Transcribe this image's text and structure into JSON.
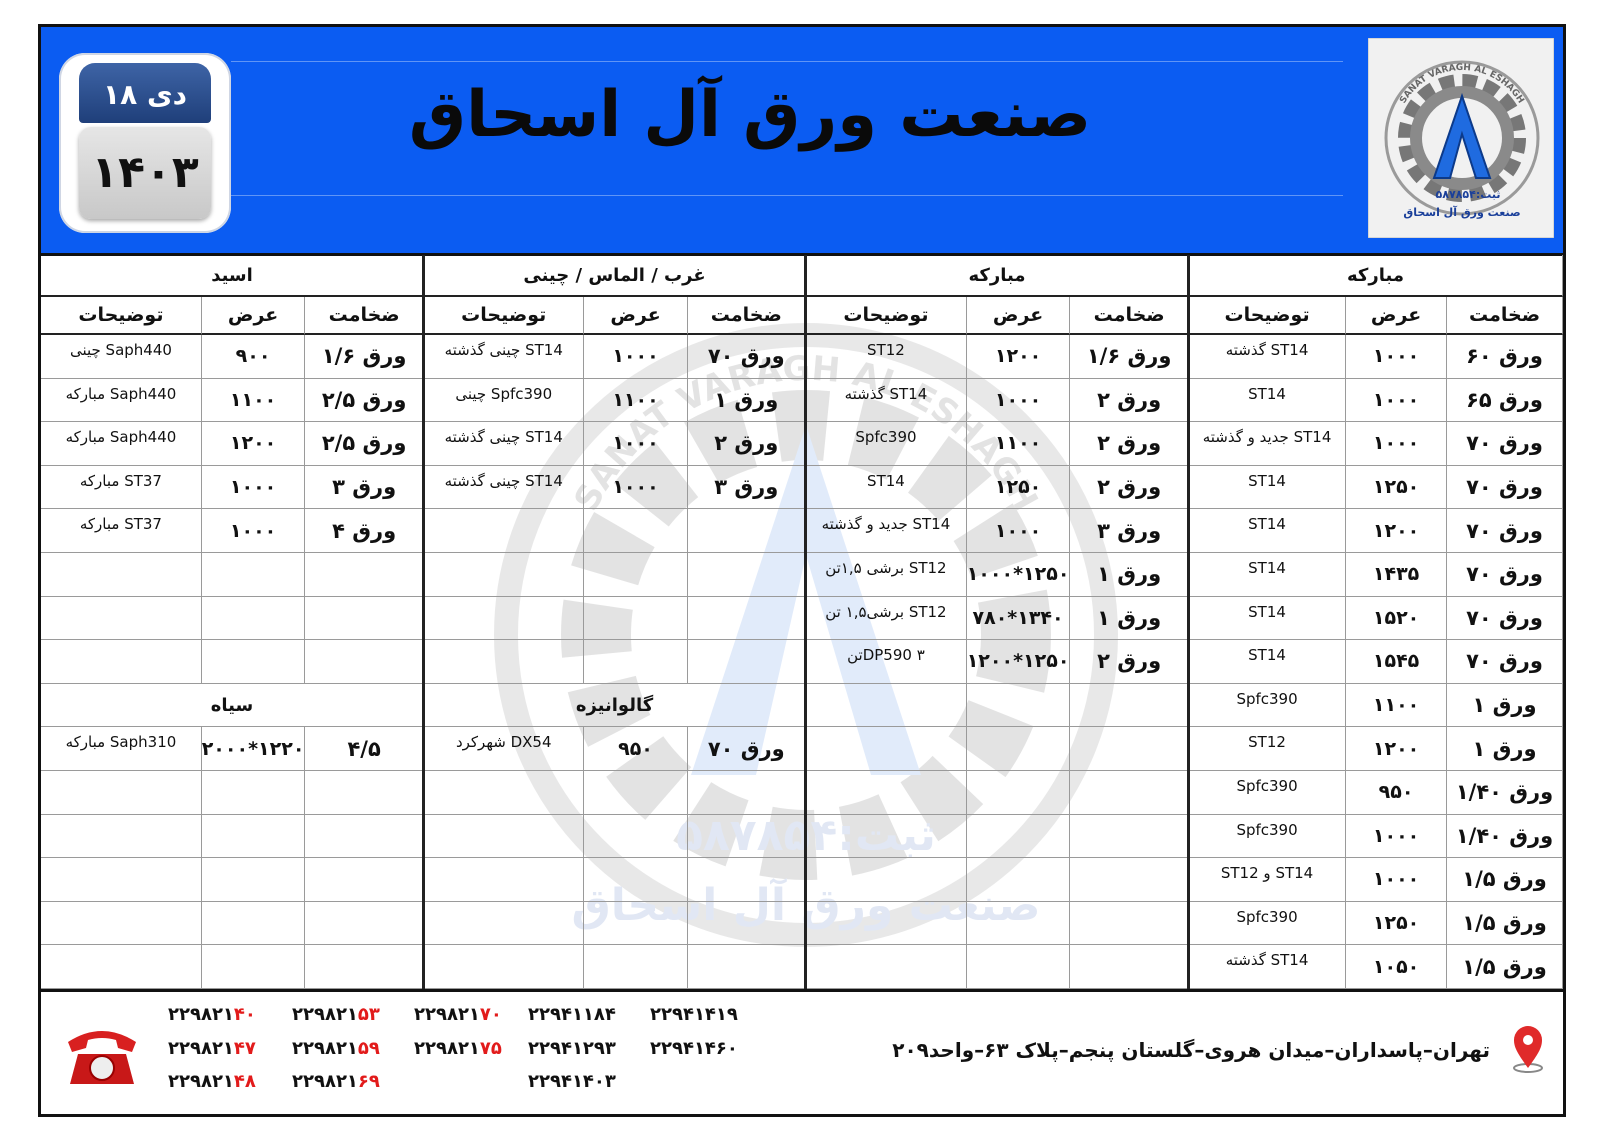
{
  "header": {
    "title": "صنعت ورق آل اسحاق",
    "date_day": "دی ۱۸",
    "date_year": "۱۴۰۳"
  },
  "logo": {
    "arc_text": "SANAT VARAGH AL ESHAGH",
    "registration": "ثبت:۵۸۷۸۵۴",
    "name": "صنعت ورق آل اسحاق"
  },
  "sections": [
    {
      "title": "مبارکه",
      "columns": [
        "ضخامت",
        "عرض",
        "توضیحات"
      ],
      "rows": [
        [
          "ورق ۶۰",
          "۱۰۰۰",
          "ST14 گذشته"
        ],
        [
          "ورق ۶۵",
          "۱۰۰۰",
          "ST14"
        ],
        [
          "ورق ۷۰",
          "۱۰۰۰",
          "ST14 جدید و گذشته"
        ],
        [
          "ورق ۷۰",
          "۱۲۵۰",
          "ST14"
        ],
        [
          "ورق ۷۰",
          "۱۲۰۰",
          "ST14"
        ],
        [
          "ورق ۷۰",
          "۱۴۳۵",
          "ST14"
        ],
        [
          "ورق ۷۰",
          "۱۵۲۰",
          "ST14"
        ],
        [
          "ورق ۷۰",
          "۱۵۴۵",
          "ST14"
        ],
        [
          "ورق ۱",
          "۱۱۰۰",
          "Spfc390"
        ],
        [
          "ورق ۱",
          "۱۲۰۰",
          "ST12"
        ],
        [
          "ورق ۱/۴۰",
          "۹۵۰",
          "Spfc390"
        ],
        [
          "ورق ۱/۴۰",
          "۱۰۰۰",
          "Spfc390"
        ],
        [
          "ورق ۱/۵",
          "۱۰۰۰",
          "ST14 و ST12"
        ],
        [
          "ورق ۱/۵",
          "۱۲۵۰",
          "Spfc390"
        ],
        [
          "ورق ۱/۵",
          "۱۰۵۰",
          "ST14 گذشته"
        ]
      ]
    },
    {
      "title": "مبارکه",
      "columns": [
        "ضخامت",
        "عرض",
        "توضیحات"
      ],
      "rows": [
        [
          "ورق ۱/۶",
          "۱۲۰۰",
          "ST12"
        ],
        [
          "ورق ۲",
          "۱۰۰۰",
          "ST14 گذشته"
        ],
        [
          "ورق ۲",
          "۱۱۰۰",
          "Spfc390"
        ],
        [
          "ورق ۲",
          "۱۲۵۰",
          "ST14"
        ],
        [
          "ورق ۳",
          "۱۰۰۰",
          "ST14 جدید و گذشته"
        ],
        [
          "ورق ۱",
          "۱۲۵۰*۱۰۰۰",
          "ST12 برشی ۱,۵تن"
        ],
        [
          "ورق ۱",
          "۱۳۴۰*۷۸۰",
          "ST12 برشی۱,۵ تن"
        ],
        [
          "ورق ۲",
          "۱۲۵۰*۱۲۰۰",
          "DP590 ۳تن"
        ]
      ]
    },
    {
      "title": "غرب / الماس / چینی",
      "columns": [
        "ضخامت",
        "عرض",
        "توضیحات"
      ],
      "rows": [
        [
          "ورق ۷۰",
          "۱۰۰۰",
          "ST14 چینی گذشته"
        ],
        [
          "ورق ۱",
          "۱۱۰۰",
          "Spfc390 چینی"
        ],
        [
          "ورق ۲",
          "۱۰۰۰",
          "ST14 چینی گذشته"
        ],
        [
          "ورق ۳",
          "۱۰۰۰",
          "ST14 چینی گذشته"
        ]
      ],
      "sub": {
        "title": "گالوانیزه",
        "rows": [
          [
            "ورق ۷۰",
            "۹۵۰",
            "DX54 شهرکرد"
          ]
        ]
      }
    },
    {
      "title": "اسید",
      "columns": [
        "ضخامت",
        "عرض",
        "توضیحات"
      ],
      "rows": [
        [
          "ورق ۱/۶",
          "۹۰۰",
          "Saph440 چینی"
        ],
        [
          "ورق ۲/۵",
          "۱۱۰۰",
          "Saph440 مبارکه"
        ],
        [
          "ورق ۲/۵",
          "۱۲۰۰",
          "Saph440 مبارکه"
        ],
        [
          "ورق ۳",
          "۱۰۰۰",
          "ST37 مبارکه"
        ],
        [
          "ورق ۴",
          "۱۰۰۰",
          "ST37 مبارکه"
        ]
      ],
      "sub": {
        "title": "سیاه",
        "rows": [
          [
            "۴/۵",
            "۱۲۲۰*۲۰۰۰",
            "Saph310 مبارکه"
          ]
        ]
      }
    }
  ],
  "footer": {
    "address": "تهران–پاسداران–میدان هروی–گلستان پنجم–پلاک ۶۳–واحد۲۰۹",
    "phone_columns": [
      [
        {
          "main": "۲۲۹۸۲۱",
          "highlight": "۴۰"
        },
        {
          "main": "۲۲۹۸۲۱",
          "highlight": "۴۷"
        },
        {
          "main": "۲۲۹۸۲۱",
          "highlight": "۴۸"
        }
      ],
      [
        {
          "main": "۲۲۹۸۲۱",
          "highlight": "۵۳"
        },
        {
          "main": "۲۲۹۸۲۱",
          "highlight": "۵۹"
        },
        {
          "main": "۲۲۹۸۲۱",
          "highlight": "۶۹"
        }
      ],
      [
        {
          "main": "۲۲۹۸۲۱",
          "highlight": "۷۰"
        },
        {
          "main": "۲۲۹۸۲۱",
          "highlight": "۷۵"
        }
      ],
      [
        {
          "main": "۲۲۹۴۱۱۸۴"
        },
        {
          "main": "۲۲۹۴۱۲۹۳"
        },
        {
          "main": "۲۲۹۴۱۴۰۳"
        }
      ],
      [
        {
          "main": "۲۲۹۴۱۴۱۹"
        },
        {
          "main": "۲۲۹۴۱۴۶۰"
        }
      ]
    ]
  }
}
